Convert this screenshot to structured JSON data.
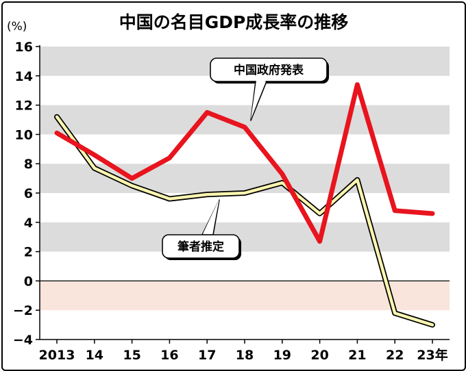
{
  "chart_data": {
    "type": "line",
    "title": "中国の名目GDP成長率の推移",
    "ylabel": "(%)",
    "xlabel": "",
    "categories": [
      "2013",
      "14",
      "15",
      "16",
      "17",
      "18",
      "19",
      "20",
      "21",
      "22",
      "23年"
    ],
    "x": [
      2013,
      2014,
      2015,
      2016,
      2017,
      2018,
      2019,
      2020,
      2021,
      2022,
      2023
    ],
    "ylim": [
      -4,
      16
    ],
    "yticks": [
      16,
      14,
      12,
      10,
      8,
      6,
      4,
      2,
      0,
      -2,
      -4
    ],
    "ytick_labels": [
      "16",
      "14",
      "12",
      "10",
      "8",
      "6",
      "4",
      "2",
      "0",
      "−2",
      "−4"
    ],
    "series": [
      {
        "name": "中国政府発表",
        "color": "#e8141e",
        "values": [
          10.1,
          8.6,
          7.0,
          8.4,
          11.5,
          10.5,
          7.3,
          2.7,
          13.4,
          4.8,
          4.6
        ]
      },
      {
        "name": "筆者推定",
        "color": "#fbf5b0",
        "values": [
          11.2,
          7.7,
          6.5,
          5.6,
          5.9,
          6.0,
          6.7,
          4.6,
          6.9,
          -2.2,
          -3.0
        ]
      }
    ],
    "bands": {
      "gray_color": "#dcdcdc",
      "negative_color": "#f9e5dc"
    }
  }
}
